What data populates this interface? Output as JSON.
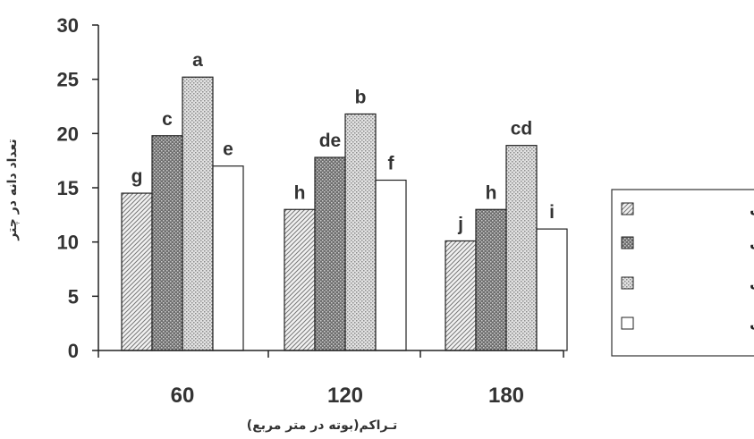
{
  "chart_data": {
    "type": "bar",
    "title": "",
    "xlabel": "تـراکم(بوته در متر مربع)",
    "ylabel": "تعداد دانه در چتر",
    "categories": [
      "60",
      "120",
      "180"
    ],
    "ylim": [
      0,
      30
    ],
    "yticks": [
      0,
      5,
      10,
      15,
      20,
      25,
      30
    ],
    "grid": false,
    "legend_position": "right",
    "series": [
      {
        "name": "بدون کنترل",
        "values": [
          14.5,
          13.0,
          10.1
        ],
        "labels": [
          "g",
          "h",
          "j"
        ],
        "pattern": "hatch"
      },
      {
        "name": "یکبار کنترل",
        "values": [
          19.8,
          17.8,
          13.0
        ],
        "labels": [
          "c",
          "de",
          "h"
        ],
        "pattern": "dark-dots"
      },
      {
        "name": "دو بار کنترل",
        "values": [
          25.2,
          21.8,
          18.9
        ],
        "labels": [
          "a",
          "b",
          "cd"
        ],
        "pattern": "light-dots"
      },
      {
        "name": "سه بار کنترل",
        "values": [
          17.0,
          15.7,
          11.2
        ],
        "labels": [
          "e",
          "f",
          "i"
        ],
        "pattern": "white"
      }
    ]
  }
}
